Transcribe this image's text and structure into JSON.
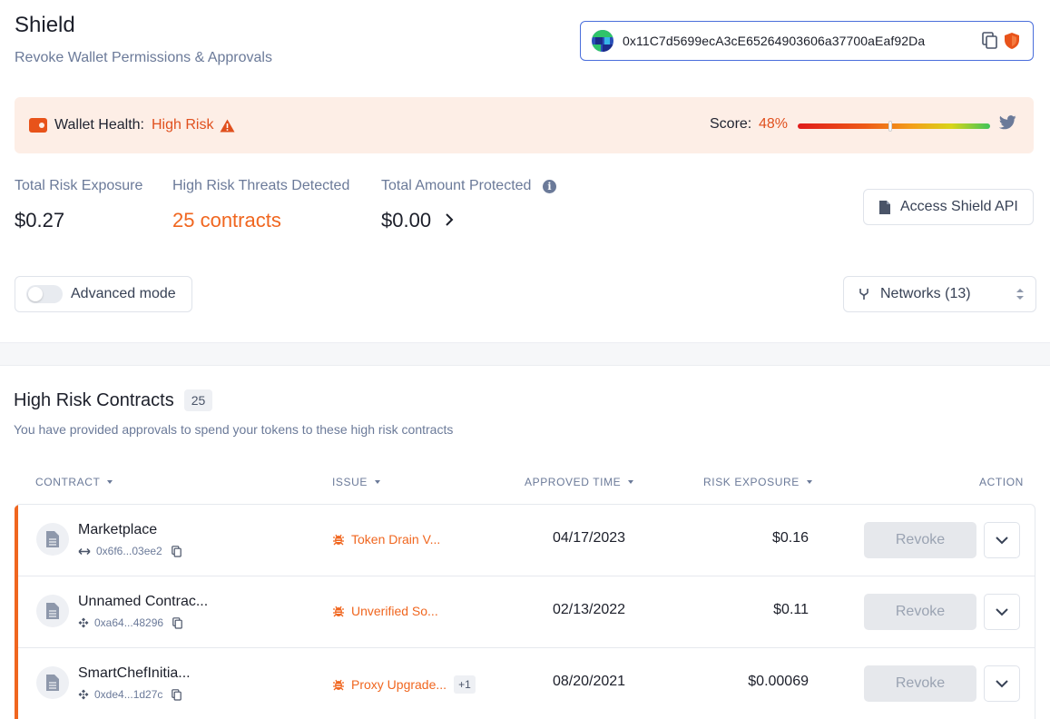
{
  "header": {
    "title": "Shield",
    "subtitle": "Revoke Wallet Permissions & Approvals",
    "wallet_address": "0x11C7d5699ecA3cE65264903606a37700aEaf92Da",
    "icons": [
      "avatar",
      "copy-icon",
      "shield-icon"
    ]
  },
  "health": {
    "label": "Wallet Health:",
    "value": "High Risk",
    "score_label": "Score:",
    "score_value": "48%",
    "score_fraction": 0.48,
    "colors": {
      "risk": "#e0501e",
      "background": "#fdeee6"
    }
  },
  "stats": {
    "exposure_label": "Total Risk Exposure",
    "exposure_value": "$0.27",
    "threats_label": "High Risk Threats Detected",
    "threats_value": "25 contracts",
    "protected_label": "Total Amount Protected",
    "protected_value": "$0.00",
    "api_button": "Access Shield API"
  },
  "controls": {
    "advanced_mode": "Advanced mode",
    "advanced_mode_on": false,
    "networks": "Networks (13)"
  },
  "contracts": {
    "title": "High Risk Contracts",
    "count": "25",
    "subtitle": "You have provided approvals to spend your tokens to these high risk contracts",
    "columns": {
      "contract": "CONTRACT",
      "issue": "ISSUE",
      "approved_time": "APPROVED TIME",
      "risk_exposure": "RISK EXPOSURE",
      "action": "ACTION"
    },
    "rows": [
      {
        "name": "Marketplace",
        "address": "0x6f6...03ee2",
        "chain_icon": "arrows-icon",
        "issue": "Token Drain V...",
        "extra": "",
        "date": "04/17/2023",
        "exposure": "$0.16",
        "action": "Revoke"
      },
      {
        "name": "Unnamed Contrac...",
        "address": "0xa64...48296",
        "chain_icon": "bnb-icon",
        "issue": "Unverified So...",
        "extra": "",
        "date": "02/13/2022",
        "exposure": "$0.11",
        "action": "Revoke"
      },
      {
        "name": "SmartChefInitia...",
        "address": "0xde4...1d27c",
        "chain_icon": "bnb-icon",
        "issue": "Proxy Upgrade...",
        "extra": "+1",
        "date": "08/20/2021",
        "exposure": "$0.00069",
        "action": "Revoke"
      }
    ]
  }
}
